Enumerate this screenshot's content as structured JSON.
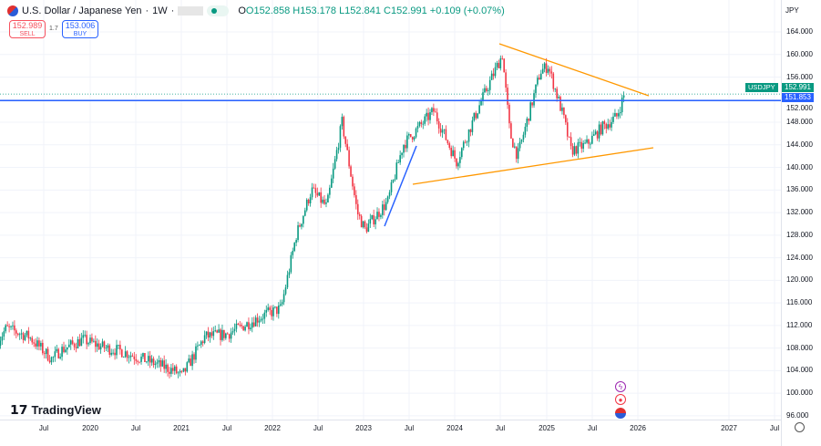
{
  "header": {
    "title": "U.S. Dollar / Japanese Yen",
    "interval": "1W",
    "open": "O152.858",
    "high": "H153.178",
    "low": "L152.841",
    "close": "C152.991",
    "change": "+0.109 (+0.07%)"
  },
  "trade": {
    "sell_price": "152.989",
    "sell_label": "SELL",
    "spread": "1.7",
    "buy_price": "153.006",
    "buy_label": "BUY"
  },
  "price_axis": {
    "currency": "JPY",
    "labels": [
      "164.000",
      "160.000",
      "156.000",
      "152.000",
      "148.000",
      "144.000",
      "140.000",
      "136.000",
      "132.000",
      "128.000",
      "124.000",
      "120.000",
      "116.000",
      "112.000",
      "108.000",
      "104.000",
      "100.000",
      "96.000"
    ],
    "last_price": "152.991",
    "line_price": "151.853",
    "symbol": "USDJPY"
  },
  "time_axis": {
    "labels": [
      "Jul",
      "2020",
      "Jul",
      "2021",
      "Jul",
      "2022",
      "Jul",
      "2023",
      "Jul",
      "2024",
      "Jul",
      "2025",
      "Jul",
      "2026",
      "2027",
      "Jul"
    ]
  },
  "branding": "TradingView",
  "colors": {
    "up": "#089981",
    "down": "#f23645",
    "hline": "#2962ff",
    "triangle": "#ff9800"
  },
  "chart_data": {
    "type": "candlestick",
    "symbol": "USDJPY",
    "interval": "1W",
    "ylim": [
      96,
      164
    ],
    "x": [
      "2019-01",
      "2019-02",
      "2019-05",
      "2019-08",
      "2019-09",
      "2019-12",
      "2020-03",
      "2020-05",
      "2020-08",
      "2020-12",
      "2021-01",
      "2021-04",
      "2021-07",
      "2021-12",
      "2022-02",
      "2022-04",
      "2022-06",
      "2022-08",
      "2022-10",
      "2022-12",
      "2023-01",
      "2023-04",
      "2023-06",
      "2023-10",
      "2024-01",
      "2024-04",
      "2024-07",
      "2024-08",
      "2024-09",
      "2024-12",
      "2025-01",
      "2025-03",
      "2025-04",
      "2025-06",
      "2025-08",
      "2025-10",
      "2025-11"
    ],
    "close": [
      109.5,
      111.5,
      110,
      106,
      107.5,
      109.5,
      108,
      107.5,
      106,
      104,
      103,
      110,
      110.5,
      114,
      115,
      128,
      136,
      133,
      148,
      132,
      129,
      134,
      144,
      150,
      141,
      151,
      160,
      146,
      142,
      157,
      158,
      149,
      143,
      144,
      147,
      149,
      153
    ],
    "horizontal_line": 151.853,
    "triangle_upper": [
      [
        "2024-07",
        162
      ],
      [
        "2026-02",
        152.5
      ]
    ],
    "triangle_lower": [
      [
        "2023-07",
        137
      ],
      [
        "2026-03",
        143.5
      ]
    ]
  }
}
